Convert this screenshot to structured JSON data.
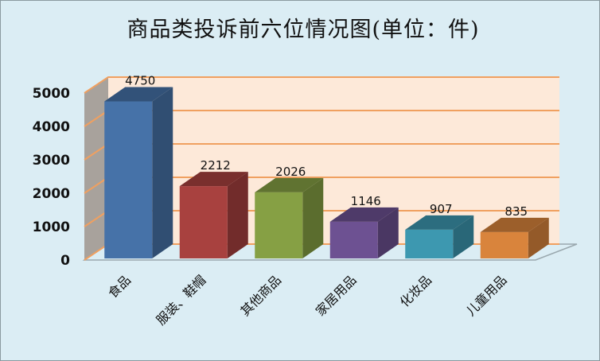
{
  "title": "商品类投诉前六位情况图(单位：件)",
  "chart_data": {
    "type": "bar",
    "title": "商品类投诉前六位情况图(单位：件)",
    "xlabel": "",
    "ylabel": "",
    "ylim": [
      0,
      5000
    ],
    "yticks": [
      0,
      1000,
      2000,
      3000,
      4000,
      5000
    ],
    "grid": true,
    "style": "3d-column",
    "categories": [
      "食品",
      "服装、鞋帽",
      "其他商品",
      "家居用品",
      "化妆品",
      "儿童用品"
    ],
    "values": [
      4750,
      2212,
      2026,
      1146,
      907,
      835
    ],
    "colors": [
      "#4672a8",
      "#a8413f",
      "#86a044",
      "#6d5192",
      "#3d98b0",
      "#d9843c"
    ],
    "data_labels": [
      "4750",
      "2212",
      "2026",
      "1146",
      "907",
      "835"
    ],
    "legend": null
  },
  "colors": {
    "background": "#dbedf4",
    "plot_back_wall": "#fde9d9",
    "plot_side_wall": "#a8a29c",
    "gridline": "#f0a060"
  }
}
